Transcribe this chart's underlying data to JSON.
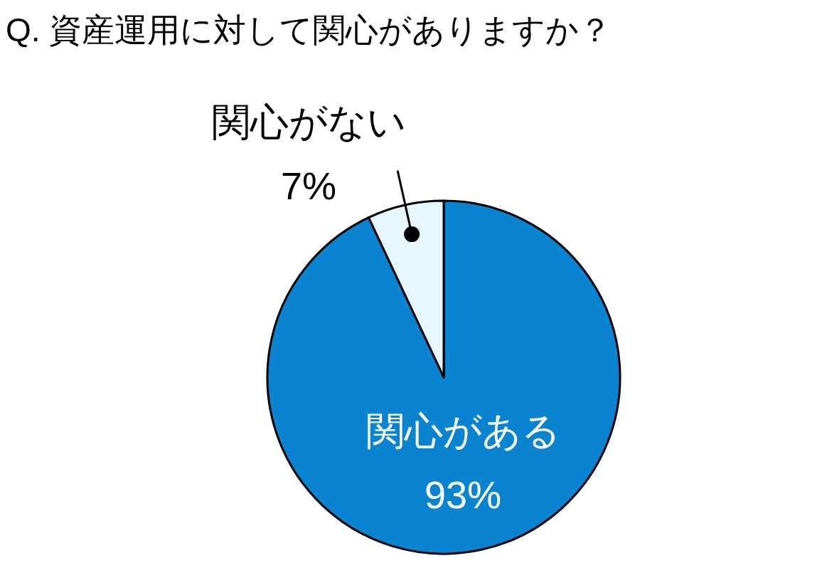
{
  "chart_data": {
    "type": "pie",
    "title": "Q. 資産運用に対して関心がありますか？",
    "categories": [
      "関心がある",
      "関心がない"
    ],
    "values": [
      93,
      7
    ],
    "colors": [
      "#0a84d0",
      "#e6f6fd"
    ],
    "value_labels": [
      "93%",
      "7%"
    ]
  }
}
